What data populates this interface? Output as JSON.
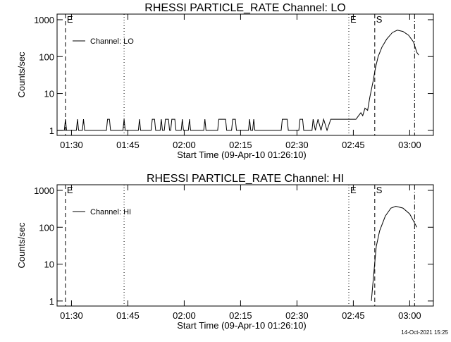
{
  "chart_data": [
    {
      "type": "line",
      "title": "RHESSI PARTICLE_RATE Channel: LO",
      "xlabel": "Start Time (09-Apr-10 01:26:10)",
      "ylabel": "Counts/sec",
      "log_y": true,
      "xlim": [
        86.17,
        186.3
      ],
      "ylim": [
        0.73,
        1420
      ],
      "xticks": [
        {
          "value": 90,
          "label": "01:30"
        },
        {
          "value": 105,
          "label": "01:45"
        },
        {
          "value": 120,
          "label": "02:00"
        },
        {
          "value": 135,
          "label": "02:15"
        },
        {
          "value": 150,
          "label": "02:30"
        },
        {
          "value": 165,
          "label": "02:45"
        },
        {
          "value": 180,
          "label": "03:00"
        }
      ],
      "yticks": [
        1,
        10,
        100,
        1000
      ],
      "flags": [
        {
          "x": 88.4,
          "label": "E",
          "style": "dashed"
        },
        {
          "x": 104.0,
          "style": "dotted"
        },
        {
          "x": 163.8,
          "label": "E",
          "style": "dotted"
        },
        {
          "x": 170.7,
          "label": "S",
          "style": "dashed"
        },
        {
          "x": 181.3,
          "style": "dashdot"
        }
      ],
      "x": [
        86.2,
        88.1,
        88.4,
        88.7,
        91.3,
        91.6,
        91.9,
        92.9,
        93.2,
        93.5,
        99.3,
        99.6,
        100.1,
        100.4,
        103.7,
        104.0,
        104.3,
        107.8,
        108.1,
        108.4,
        111.2,
        111.5,
        112.1,
        112.4,
        113.6,
        113.9,
        114.2,
        114.7,
        115.0,
        115.8,
        116.1,
        116.4,
        116.7,
        117.5,
        117.8,
        119.2,
        119.5,
        119.8,
        121.1,
        121.4,
        121.7,
        125.2,
        125.5,
        125.8,
        128.9,
        129.2,
        130.3,
        131.0,
        131.3,
        132.6,
        132.9,
        133.6,
        133.9,
        137.1,
        137.4,
        137.7,
        138.2,
        138.5,
        138.8,
        145.8,
        146.1,
        146.7,
        147.4,
        147.7,
        150.5,
        150.8,
        151.5,
        151.8,
        154.0,
        154.3,
        154.9,
        155.6,
        156.4,
        157.1,
        158.0,
        159.0,
        160.0,
        165.7,
        166.4,
        167.0,
        167.5,
        168.1,
        168.8,
        169.4,
        170.2,
        170.9,
        171.6,
        172.6,
        173.9,
        175.4,
        176.7,
        178.2,
        179.7,
        181.0,
        181.9,
        182.4
      ],
      "series": [
        {
          "name": "Channel: LO",
          "color": "#000000",
          "values": [
            1,
            1,
            2,
            1,
            1,
            2,
            1,
            1,
            2,
            1,
            1,
            2,
            2,
            1,
            1,
            2,
            1,
            1,
            2,
            1,
            1,
            2,
            2,
            1,
            1,
            2,
            1,
            1,
            2,
            2,
            1,
            1,
            2,
            2,
            1,
            1,
            2,
            1,
            1,
            2,
            1,
            1,
            2,
            1,
            1,
            2,
            2,
            2,
            1,
            1,
            2,
            2,
            1,
            1,
            2,
            1,
            1,
            2,
            1,
            1,
            2,
            2,
            2,
            1,
            1,
            2,
            2,
            1,
            1,
            2,
            1,
            2,
            1,
            2,
            1,
            2,
            2,
            2,
            2.5,
            3,
            2.5,
            4,
            3.5,
            8,
            20,
            50,
            100,
            180,
            300,
            450,
            520,
            480,
            380,
            250,
            130,
            110
          ]
        }
      ]
    },
    {
      "type": "line",
      "title": "RHESSI PARTICLE_RATE Channel: HI",
      "xlabel": "Start Time (09-Apr-10 01:26:10)",
      "ylabel": "Counts/sec",
      "log_y": true,
      "xlim": [
        86.17,
        186.3
      ],
      "ylim": [
        0.73,
        1420
      ],
      "xticks": [
        {
          "value": 90,
          "label": "01:30"
        },
        {
          "value": 105,
          "label": "01:45"
        },
        {
          "value": 120,
          "label": "02:00"
        },
        {
          "value": 135,
          "label": "02:15"
        },
        {
          "value": 150,
          "label": "02:30"
        },
        {
          "value": 165,
          "label": "02:45"
        },
        {
          "value": 180,
          "label": "03:00"
        }
      ],
      "yticks": [
        1,
        10,
        100,
        1000
      ],
      "flags": [
        {
          "x": 88.4,
          "label": "E",
          "style": "dashed"
        },
        {
          "x": 104.0,
          "style": "dotted"
        },
        {
          "x": 163.8,
          "label": "E",
          "style": "dotted"
        },
        {
          "x": 170.7,
          "label": "S",
          "style": "dashed"
        },
        {
          "x": 181.3,
          "style": "dashdot"
        }
      ],
      "x": [
        169.8,
        170.4,
        171.1,
        172.0,
        173.5,
        175.0,
        176.3,
        178.2,
        180.0,
        181.3,
        181.9
      ],
      "series": [
        {
          "name": "Channel: HI",
          "color": "#000000",
          "values": [
            1,
            5,
            30,
            80,
            200,
            330,
            370,
            330,
            230,
            130,
            100
          ]
        }
      ]
    }
  ],
  "footer": "14-Oct-2021 15:25"
}
